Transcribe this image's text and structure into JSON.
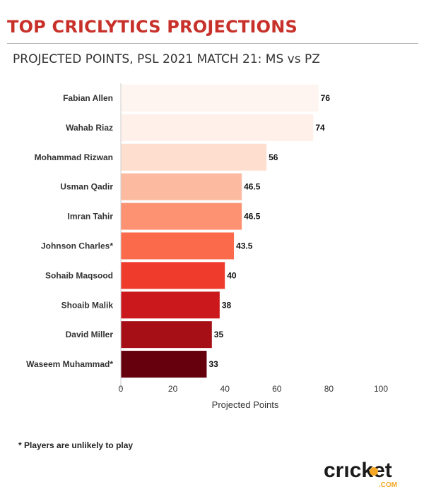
{
  "header": {
    "title": "TOP CRICLYTICS PROJECTIONS",
    "subtitle": "PROJECTED POINTS, PSL 2021 MATCH 21: MS vs PZ"
  },
  "colors": {
    "title": "#c8312a",
    "logo_text": "#1a1a1a",
    "logo_accent": "#f5a623"
  },
  "chart_data": {
    "type": "bar",
    "orientation": "horizontal",
    "categories": [
      "Fabian Allen",
      "Wahab Riaz",
      "Mohammad Rizwan",
      "Usman Qadir",
      "Imran Tahir",
      "Johnson Charles*",
      "Sohaib Maqsood",
      "Shoaib Malik",
      "David Miller",
      "Waseem Muhammad*"
    ],
    "values": [
      76,
      74,
      56,
      46.5,
      46.5,
      43.5,
      40,
      38,
      35,
      33
    ],
    "value_labels": [
      "76",
      "74",
      "56",
      "46.5",
      "46.5",
      "43.5",
      "40",
      "38",
      "35",
      "33"
    ],
    "bar_colors": [
      "#fff5f0",
      "#fff0e9",
      "#fedfcf",
      "#fcbba1",
      "#fc9272",
      "#fb6a4a",
      "#ef3b2c",
      "#cb181d",
      "#a50f15",
      "#67000d"
    ],
    "xlabel": "Projected Points",
    "xlim": [
      0,
      100
    ],
    "xticks": [
      "0",
      "20",
      "40",
      "60",
      "80",
      "100"
    ],
    "grid": false,
    "legend": "none"
  },
  "footer": {
    "footnote": "* Players are unlikely to play",
    "logo_text": "crıcket",
    "logo_sub": ".COM"
  }
}
